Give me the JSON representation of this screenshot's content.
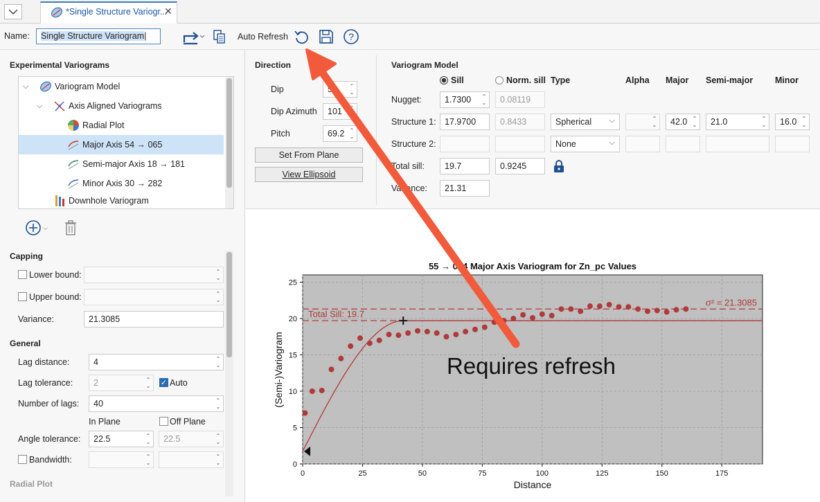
{
  "tab": {
    "title": "*Single Structure Variogr..."
  },
  "toolbar": {
    "name_label": "Name:",
    "name_value": "Single Structure Variogram",
    "auto_refresh_label": "Auto Refresh"
  },
  "left": {
    "experimental_title": "Experimental Variograms",
    "tree": [
      {
        "label": "Variogram Model",
        "icon": "variogram-model-icon"
      },
      {
        "label": "Axis Aligned Variograms",
        "icon": "axis-aligned-icon"
      },
      {
        "label": "Radial Plot",
        "icon": "radial-plot-icon"
      },
      {
        "label": "Major Axis 54 → 065",
        "icon": "major-axis-icon"
      },
      {
        "label": "Semi-major Axis 18 → 181",
        "icon": "semi-major-axis-icon"
      },
      {
        "label": "Minor Axis 30 → 282",
        "icon": "minor-axis-icon"
      },
      {
        "label": "Downhole Variogram",
        "icon": "downhole-variogram-icon"
      }
    ],
    "capping": {
      "title": "Capping",
      "lower_bound": "Lower bound:",
      "upper_bound": "Upper bound:",
      "variance_label": "Variance:",
      "variance_value": "21.3085"
    },
    "general": {
      "title": "General",
      "lag_distance_label": "Lag distance:",
      "lag_distance": "4",
      "lag_tolerance_label": "Lag tolerance:",
      "lag_tolerance": "2",
      "auto_label": "Auto",
      "number_of_lags_label": "Number of lags:",
      "number_of_lags": "40",
      "in_plane": "In Plane",
      "off_plane": "Off Plane",
      "angle_tolerance_label": "Angle tolerance:",
      "angle_tolerance": "22.5",
      "angle_tolerance_off": "22.5",
      "bandwidth_label": "Bandwidth:"
    },
    "radial_plot_title": "Radial Plot"
  },
  "direction": {
    "title": "Direction",
    "dip_label": "Dip",
    "dip_value": "54",
    "dip_azimuth_label": "Dip Azimuth",
    "dip_azimuth_value": "101",
    "pitch_label": "Pitch",
    "pitch_value": "69.2",
    "set_from_plane": "Set From Plane",
    "view_ellipsoid": "View Ellipsoid"
  },
  "model": {
    "title": "Variogram Model",
    "sill_label": "Sill",
    "norm_sill_label": "Norm. sill",
    "headers": {
      "type": "Type",
      "alpha": "Alpha",
      "major": "Major",
      "semi_major": "Semi-major",
      "minor": "Minor"
    },
    "nugget_label": "Nugget:",
    "nugget_sill": "1.7300",
    "nugget_norm": "0.08119",
    "structure1_label": "Structure 1:",
    "s1_sill": "17.9700",
    "s1_norm": "0.8433",
    "s1_type": "Spherical",
    "s1_major": "42.0",
    "s1_semi": "21.0",
    "s1_minor": "16.0",
    "structure2_label": "Structure 2:",
    "s2_type": "None",
    "total_sill_label": "Total sill:",
    "total_sill": "19.7",
    "total_norm": "0.9245",
    "variance_label": "Variance:",
    "variance_value": "21.31"
  },
  "annotation": {
    "text": "Requires refresh",
    "color": "#f25a3c"
  },
  "chart_data": {
    "type": "scatter",
    "title": "55 → 064 Major Axis Variogram for Zn_pc Values",
    "xlabel": "Distance",
    "ylabel": "(Semi-)Variogram",
    "xlim": [
      0,
      192
    ],
    "ylim": [
      0,
      26
    ],
    "xticks": [
      0,
      25,
      50,
      75,
      100,
      125,
      150,
      175
    ],
    "yticks": [
      0,
      5,
      10,
      15,
      20,
      25
    ],
    "total_sill_label": "Total Sill: 19.7",
    "total_sill": 19.7,
    "variance_label": "σ² = 21.3085",
    "variance": 21.3085,
    "nugget": 1.73,
    "range": 42.0,
    "points": {
      "x": [
        1,
        4,
        8,
        12,
        16,
        20,
        24,
        28,
        32,
        36,
        40,
        44,
        48,
        52,
        56,
        60,
        64,
        68,
        72,
        76,
        80,
        84,
        88,
        92,
        96,
        100,
        104,
        108,
        112,
        116,
        120,
        124,
        128,
        132,
        136,
        140,
        144,
        148,
        152,
        156,
        160
      ],
      "y": [
        7.0,
        10.0,
        10.1,
        13.0,
        14.5,
        16.2,
        17.3,
        16.6,
        17.0,
        17.8,
        17.7,
        18.0,
        18.3,
        18.2,
        18.0,
        17.5,
        17.8,
        18.2,
        18.5,
        18.8,
        19.5,
        19.7,
        20.0,
        20.5,
        20.1,
        20.6,
        20.4,
        21.3,
        21.3,
        21.0,
        21.7,
        21.7,
        21.9,
        21.6,
        21.6,
        21.3,
        21.0,
        21.1,
        20.9,
        21.2,
        21.3
      ]
    },
    "grid": true,
    "colors": {
      "points": "#b03a3a",
      "model": "#b03a3a",
      "plot_bg": "#c0c0c0"
    }
  }
}
